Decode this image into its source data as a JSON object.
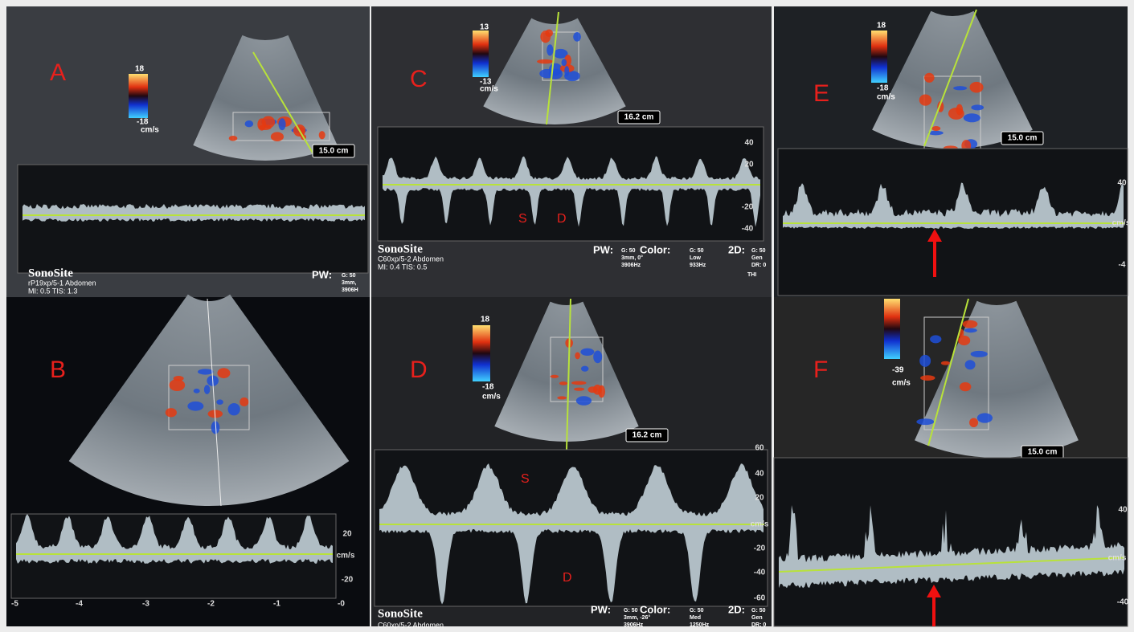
{
  "panels": [
    {
      "letter": "A",
      "scale": [
        "18",
        "-18",
        "cm/s"
      ],
      "depth": "15.0 cm",
      "axis": [],
      "footer": [
        "SonoSite",
        "rP19xp/5-1 Abdomen",
        "MI: 0.5  TIS: 1.3"
      ],
      "modes": [
        {
          "label": "PW:",
          "values": [
            "G: 50",
            "3mm,",
            "3906H"
          ]
        }
      ]
    },
    {
      "letter": "B",
      "axis": [
        "20",
        "cm/s",
        "-20"
      ],
      "time_axis": [
        "-5",
        "-4",
        "-3",
        "-2",
        "-1",
        "-0"
      ]
    },
    {
      "letter": "C",
      "scale": [
        "13",
        "-13",
        "cm/s"
      ],
      "depth": "16.2 cm",
      "axis": [
        "40",
        "20",
        "-20",
        "-40"
      ],
      "marks": [
        "S",
        "D"
      ],
      "footer": [
        "SonoSite",
        "C60xp/5-2 Abdomen",
        "MI: 0.4  TIS: 0.5"
      ],
      "modes": [
        {
          "label": "PW:",
          "values": [
            "G: 50",
            "3mm, 0°",
            "3906Hz"
          ]
        },
        {
          "label": "Color:",
          "values": [
            "G: 50",
            "Low",
            "933Hz"
          ]
        },
        {
          "label": "2D:",
          "values": [
            "G: 50",
            "Gen",
            "DR: 0"
          ]
        }
      ],
      "extra": "THI"
    },
    {
      "letter": "D",
      "scale": [
        "18",
        "-18",
        "cm/s"
      ],
      "depth": "16.2 cm",
      "axis": [
        "60",
        "40",
        "20",
        "cm/s",
        "-20",
        "-40",
        "-60"
      ],
      "marks": [
        "S",
        "D"
      ],
      "footer": [
        "SonoSite",
        "C60xp/5-2 Abdomen"
      ],
      "modes": [
        {
          "label": "PW:",
          "values": [
            "G: 50",
            "3mm, -26°",
            "3906Hz"
          ]
        },
        {
          "label": "Color:",
          "values": [
            "G: 50",
            "Med",
            "1250Hz"
          ]
        },
        {
          "label": "2D:",
          "values": [
            "G: 50",
            "Gen",
            "DR: 0"
          ]
        }
      ]
    },
    {
      "letter": "E",
      "scale": [
        "18",
        "-18",
        "cm/s"
      ],
      "depth": "15.0 cm",
      "axis": [
        "40",
        "cm/s",
        "-4"
      ]
    },
    {
      "letter": "F",
      "scale": [
        "-39",
        "cm/s"
      ],
      "depth": "15.0 cm",
      "axis": [
        "40",
        "cm/s",
        "-40"
      ]
    }
  ]
}
